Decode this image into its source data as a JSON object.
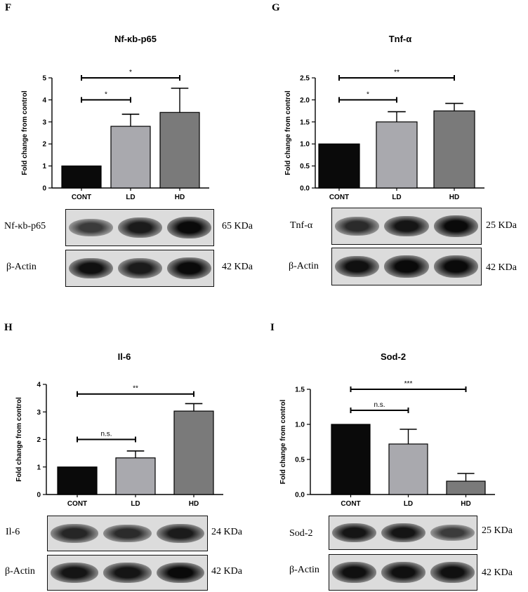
{
  "panels": [
    {
      "letter": "F",
      "title": "Nf-κb-p65",
      "blots": [
        {
          "label": "Nf-κb-p65",
          "kda": "65 KDa",
          "bands": [
            0.55,
            0.85,
            1.0
          ]
        },
        {
          "label": "β-Actin",
          "kda": "42 KDa",
          "bands": [
            0.95,
            0.85,
            1.0
          ]
        }
      ]
    },
    {
      "letter": "G",
      "title": "Tnf-α",
      "blots": [
        {
          "label": "Tnf-α",
          "kda": "25 KDa",
          "bands": [
            0.7,
            0.9,
            1.0
          ]
        },
        {
          "label": "β-Actin",
          "kda": "42 KDa",
          "bands": [
            0.95,
            1.0,
            1.0
          ]
        }
      ]
    },
    {
      "letter": "H",
      "title": "Il-6",
      "blots": [
        {
          "label": "Il-6",
          "kda": "24 KDa",
          "bands": [
            0.75,
            0.7,
            0.85
          ]
        },
        {
          "label": "β-Actin",
          "kda": "42 KDa",
          "bands": [
            0.9,
            0.9,
            1.0
          ]
        }
      ]
    },
    {
      "letter": "I",
      "title": "Sod-2",
      "blots": [
        {
          "label": "Sod-2",
          "kda": "25 KDa",
          "bands": [
            0.9,
            0.9,
            0.55
          ]
        },
        {
          "label": "β-Actin",
          "kda": "42 KDa",
          "bands": [
            0.95,
            0.95,
            0.95
          ]
        }
      ]
    }
  ],
  "chart_data": [
    {
      "type": "bar",
      "title": "Nf-κb-p65",
      "ylabel": "Fold change from control",
      "xlabel": "",
      "categories": [
        "CONT",
        "LD",
        "HD"
      ],
      "values": [
        1.0,
        2.8,
        3.43
      ],
      "errors": [
        0,
        0.55,
        1.1
      ],
      "ylim": [
        0,
        5
      ],
      "yticks": [
        "0",
        "1",
        "2",
        "3",
        "4",
        "5"
      ],
      "bar_colors": [
        "#0a0a0a",
        "#a9a9ae",
        "#7a7a7a"
      ],
      "significance": [
        {
          "from": "CONT",
          "to": "LD",
          "label": "*",
          "y": 4.0
        },
        {
          "from": "CONT",
          "to": "HD",
          "label": "*",
          "y": 5.0
        }
      ]
    },
    {
      "type": "bar",
      "title": "Tnf-α",
      "ylabel": "Fold change from control",
      "xlabel": "",
      "categories": [
        "CONT",
        "LD",
        "HD"
      ],
      "values": [
        1.0,
        1.5,
        1.75
      ],
      "errors": [
        0,
        0.23,
        0.17
      ],
      "ylim": [
        0,
        2.5
      ],
      "yticks": [
        "0.0",
        "0.5",
        "1.0",
        "1.5",
        "2.0",
        "2.5"
      ],
      "bar_colors": [
        "#0a0a0a",
        "#a9a9ae",
        "#7a7a7a"
      ],
      "significance": [
        {
          "from": "CONT",
          "to": "LD",
          "label": "*",
          "y": 2.0
        },
        {
          "from": "CONT",
          "to": "HD",
          "label": "**",
          "y": 2.5
        }
      ]
    },
    {
      "type": "bar",
      "title": "Il-6",
      "ylabel": "Fold change from control",
      "xlabel": "",
      "categories": [
        "CONT",
        "LD",
        "HD"
      ],
      "values": [
        1.0,
        1.33,
        3.03
      ],
      "errors": [
        0,
        0.25,
        0.27
      ],
      "ylim": [
        0,
        4
      ],
      "yticks": [
        "0",
        "1",
        "2",
        "3",
        "4"
      ],
      "bar_colors": [
        "#0a0a0a",
        "#a9a9ae",
        "#7a7a7a"
      ],
      "significance": [
        {
          "from": "CONT",
          "to": "LD",
          "label": "n.s.",
          "y": 2.0
        },
        {
          "from": "CONT",
          "to": "HD",
          "label": "**",
          "y": 3.65
        }
      ]
    },
    {
      "type": "bar",
      "title": "Sod-2",
      "ylabel": "Fold change from control",
      "xlabel": "",
      "categories": [
        "CONT",
        "LD",
        "HD"
      ],
      "values": [
        1.0,
        0.72,
        0.19
      ],
      "errors": [
        0,
        0.21,
        0.11
      ],
      "ylim": [
        0,
        1.5
      ],
      "yticks": [
        "0.0",
        "0.5",
        "1.0",
        "1.5"
      ],
      "bar_colors": [
        "#0a0a0a",
        "#a9a9ae",
        "#7a7a7a"
      ],
      "significance": [
        {
          "from": "CONT",
          "to": "LD",
          "label": "n.s.",
          "y": 1.2
        },
        {
          "from": "CONT",
          "to": "HD",
          "label": "***",
          "y": 1.5
        }
      ]
    }
  ]
}
